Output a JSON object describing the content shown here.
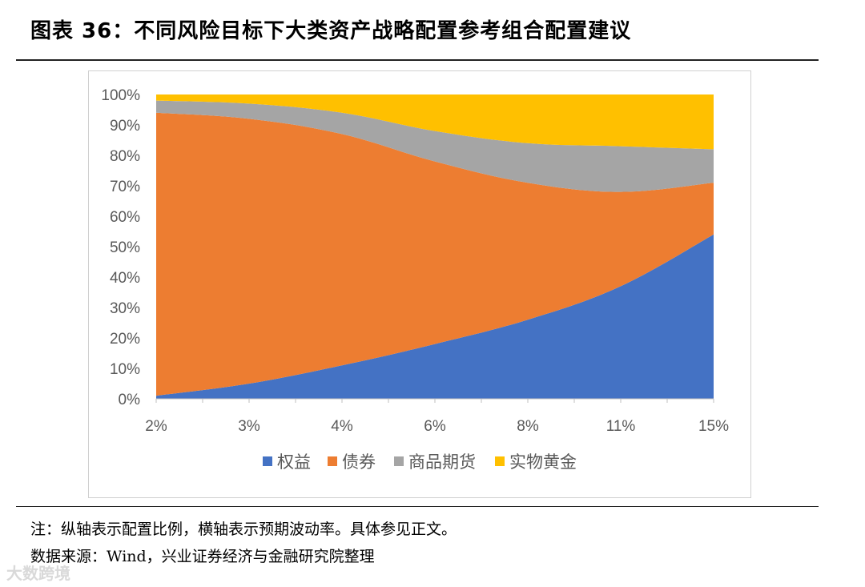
{
  "figure": {
    "title": "图表 36：不同风险目标下大类资产战略配置参考组合配置建议",
    "note": "注：纵轴表示配置比例，横轴表示预期波动率。具体参见正文。",
    "source": "数据来源：Wind，兴业证券经济与金融研究院整理",
    "watermark": "大数跨境"
  },
  "chart_data": {
    "type": "area",
    "stacked": true,
    "categories": [
      "2%",
      "3%",
      "4%",
      "6%",
      "8%",
      "11%",
      "15%"
    ],
    "series": [
      {
        "name": "权益",
        "color": "#4472C4",
        "values": [
          1,
          5,
          11,
          18,
          26,
          37,
          54
        ]
      },
      {
        "name": "债券",
        "color": "#ED7D31",
        "values": [
          93,
          87,
          76,
          60,
          45,
          31,
          17
        ]
      },
      {
        "name": "商品期货",
        "color": "#A5A5A5",
        "values": [
          4,
          5,
          7,
          10,
          13,
          15,
          11
        ]
      },
      {
        "name": "实物黄金",
        "color": "#FFC000",
        "values": [
          2,
          3,
          6,
          12,
          16,
          17,
          18
        ]
      }
    ],
    "ylim": [
      0,
      100
    ],
    "yticks": [
      "0%",
      "10%",
      "20%",
      "30%",
      "40%",
      "50%",
      "60%",
      "70%",
      "80%",
      "90%",
      "100%"
    ],
    "grid": false,
    "legend_position": "bottom"
  }
}
